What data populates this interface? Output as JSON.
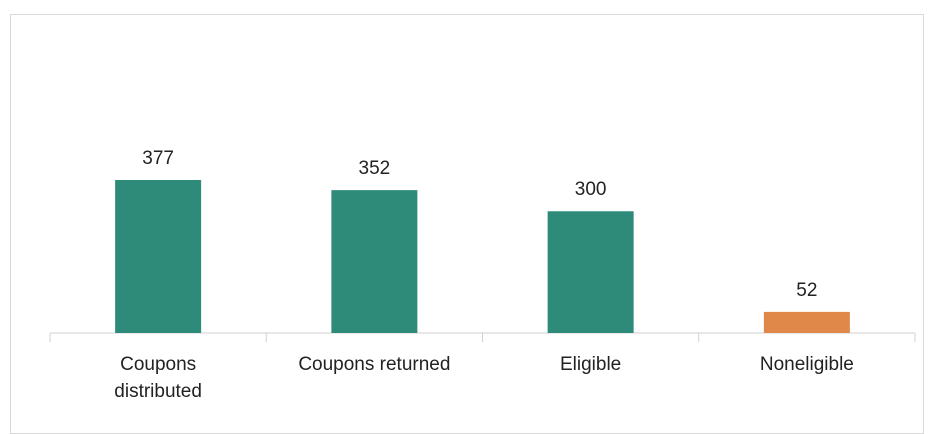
{
  "chart_data": {
    "type": "bar",
    "categories": [
      "Coupons distributed",
      "Coupons returned",
      "Eligible",
      "Noneligible"
    ],
    "values": [
      377,
      352,
      300,
      52
    ],
    "colors": [
      "#2e8b7a",
      "#2e8b7a",
      "#2e8b7a",
      "#e0874a"
    ]
  }
}
